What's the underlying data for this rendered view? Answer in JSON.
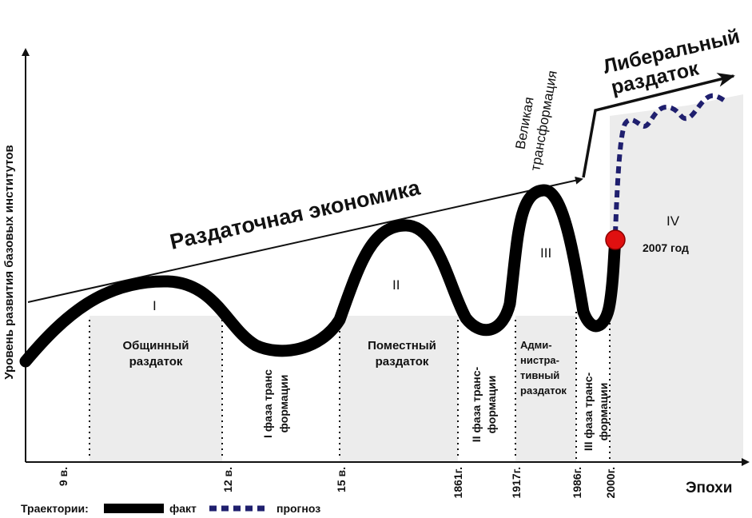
{
  "axes": {
    "y_label": "Уровень развития базовых институтов",
    "x_label": "Эпохи"
  },
  "headings": {
    "main_trend": "Раздаточная экономика",
    "liberal_line1": "Либеральный",
    "liberal_line2": "раздаток",
    "great_line1": "Великая",
    "great_line2": "трансформация"
  },
  "era_numerals": [
    "I",
    "II",
    "III",
    "IV"
  ],
  "eras": {
    "obshchinny_line1": "Общинный",
    "obshchinny_line2": "раздаток",
    "pomestny_line1": "Поместный",
    "pomestny_line2": "раздаток",
    "admin_line1": "Адми-",
    "admin_line2": "нистра-",
    "admin_line3": "тивный",
    "admin_line4": "раздаток"
  },
  "phases": {
    "phase1_line1": "I фаза транс",
    "phase1_line2": "формации",
    "phase2_line1": "II фаза транс-",
    "phase2_line2": "формации",
    "phase3_line1": "III фаза транс-",
    "phase3_line2": "формации"
  },
  "current_point": "2007 год",
  "ticks": [
    "9 в.",
    "12 в.",
    "15 в.",
    "1861г.",
    "1917г.",
    "1986г.",
    "2000г."
  ],
  "legend": {
    "title": "Траектории:",
    "fact": "факт",
    "forecast": "прогноз"
  },
  "colors": {
    "fact_line": "#000000",
    "forecast_line": "#1f1f6e",
    "current_point": "#e01010",
    "era_fill": "#ececec"
  }
}
